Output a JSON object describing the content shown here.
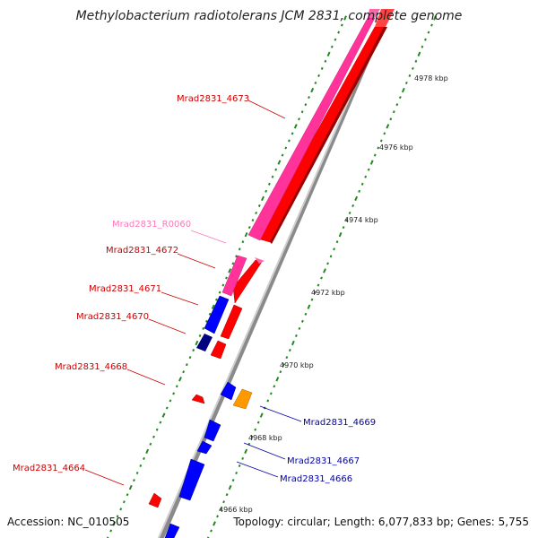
{
  "title": "Methylobacterium radiotolerans JCM 2831, complete genome",
  "footer": {
    "accession": "Accession: NC_010505",
    "summary": "Topology: circular; Length: 6,077,833 bp; Genes: 5,755"
  },
  "colors": {
    "forward_strand_gene": "#ff0000",
    "forward_strand_rna": "#ff3399",
    "reverse_strand_gene": "#0000ff",
    "reverse_strand_dark": "#000080",
    "other_gene": "#ff9900",
    "backbone": "#999999",
    "tick": "#228822",
    "label_forward": "#cc0000",
    "label_reverse": "#0000aa",
    "label_rna": "#ff77bb"
  },
  "scale_labels": [
    "4978 kbp",
    "4976 kbp",
    "4974 kbp",
    "4972 kbp",
    "4970 kbp",
    "4968 kbp",
    "4966 kbp"
  ],
  "gene_labels": [
    {
      "text": "Mrad2831_4673",
      "color": "label_forward"
    },
    {
      "text": "Mrad2831_R0060",
      "color": "label_rna"
    },
    {
      "text": "Mrad2831_4672",
      "color": "label_forward"
    },
    {
      "text": "Mrad2831_4671",
      "color": "label_forward"
    },
    {
      "text": "Mrad2831_4670",
      "color": "label_forward"
    },
    {
      "text": "Mrad2831_4668",
      "color": "label_forward"
    },
    {
      "text": "Mrad2831_4669",
      "color": "label_reverse"
    },
    {
      "text": "Mrad2831_4667",
      "color": "label_reverse"
    },
    {
      "text": "Mrad2831_4666",
      "color": "label_reverse"
    },
    {
      "text": "Mrad2831_4664",
      "color": "label_forward"
    }
  ]
}
